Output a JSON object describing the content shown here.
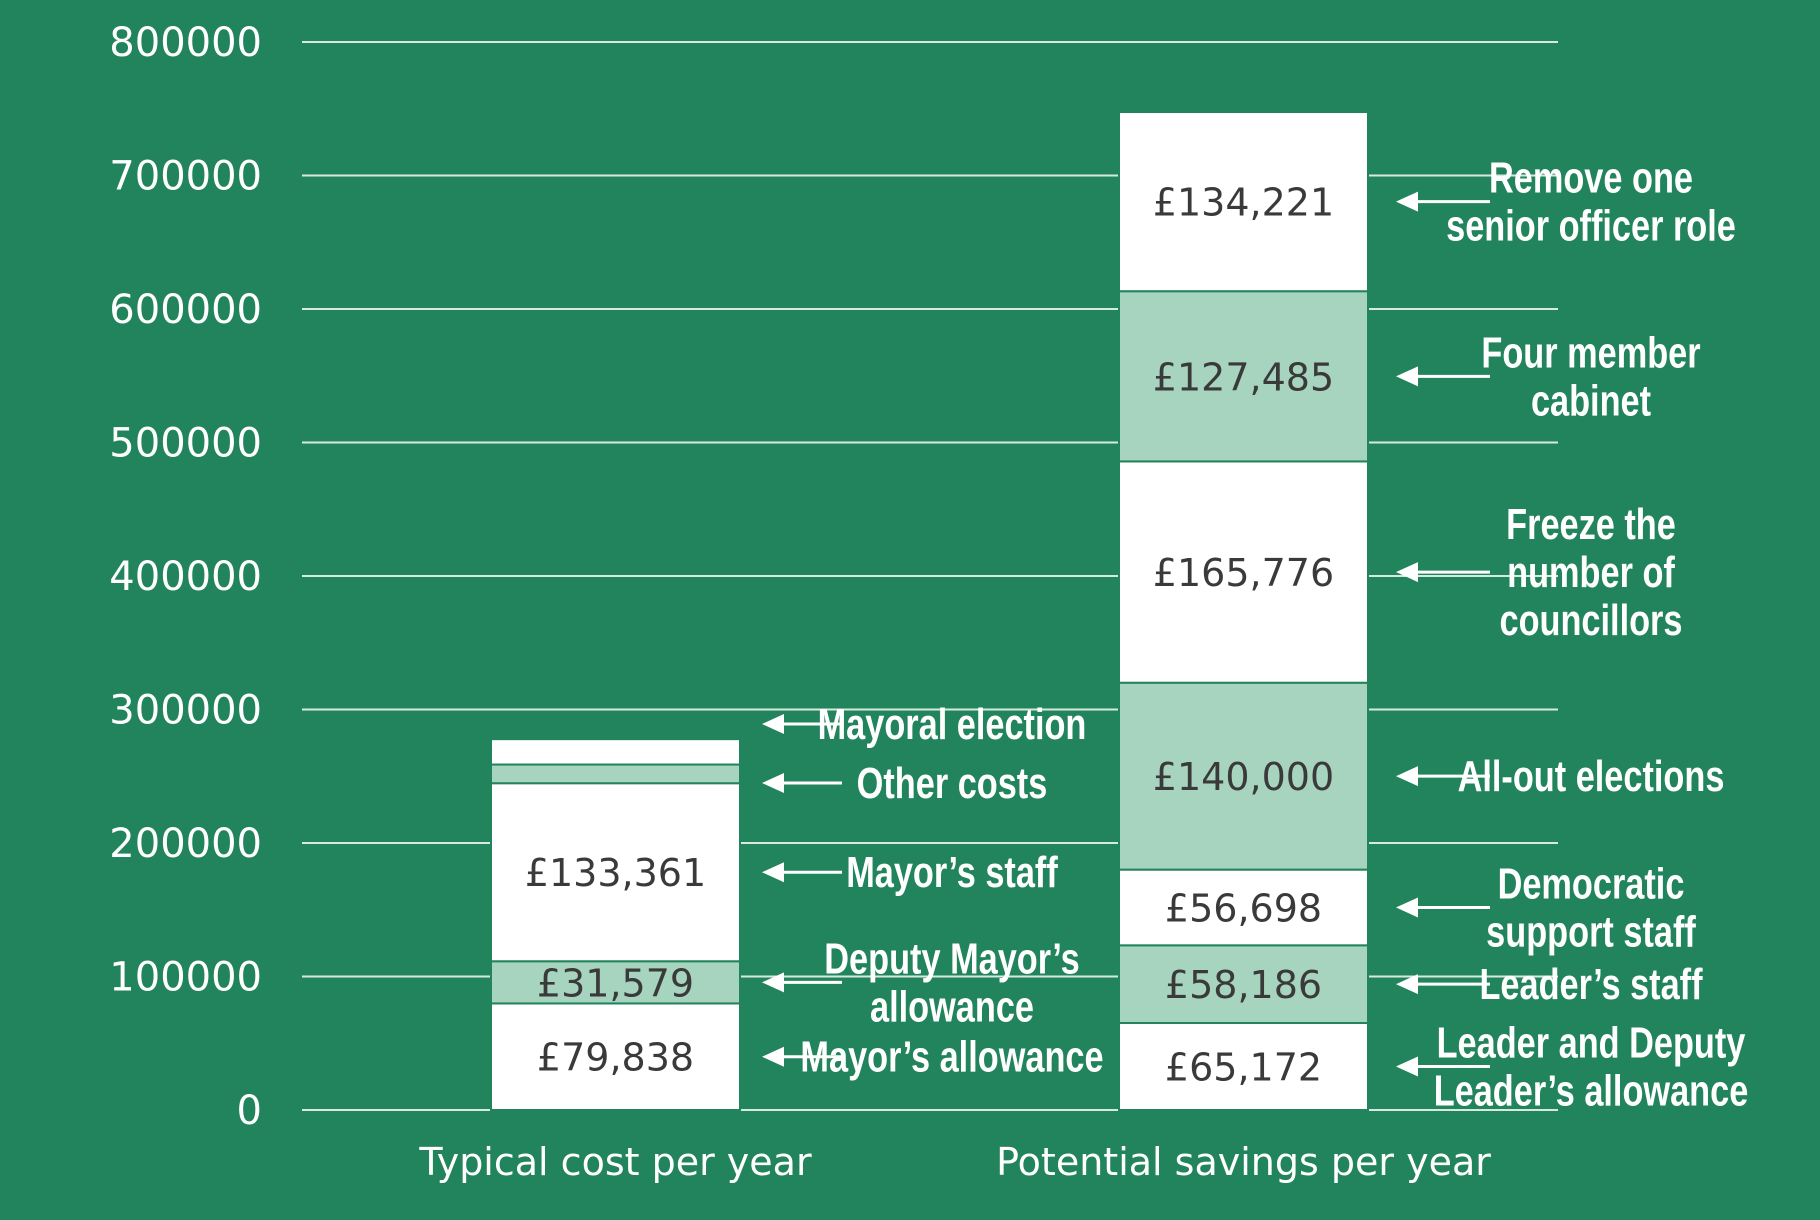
{
  "colors": {
    "background": "#22845c",
    "white_segment": "#ffffff",
    "light_segment": "#a6d4bf",
    "segment_border": "#22845c",
    "gridline": "#d8eadf",
    "value_text": "#3a3a3a"
  },
  "chart_data": {
    "type": "bar",
    "stacked": true,
    "title": "",
    "xlabel": "",
    "ylabel": "",
    "ylim": [
      0,
      800000
    ],
    "yticks": [
      0,
      100000,
      200000,
      300000,
      400000,
      500000,
      600000,
      700000,
      800000
    ],
    "ytick_labels": [
      "0",
      "100000",
      "200000",
      "300000",
      "400000",
      "500000",
      "600000",
      "700000",
      "800000"
    ],
    "grid": true,
    "categories": [
      "Typical cost per year",
      "Potential savings per year"
    ],
    "bars": [
      {
        "category": "Typical cost per year",
        "segments": [
          {
            "name": "Mayor’s allowance",
            "value": 79838,
            "label": "£79,838",
            "color": "white"
          },
          {
            "name": "Deputy Mayor’s allowance",
            "value": 31579,
            "label": "£31,579",
            "color": "light"
          },
          {
            "name": "Mayor’s staff",
            "value": 133361,
            "label": "£133,361",
            "color": "white"
          },
          {
            "name": "Other costs",
            "value": 14000,
            "label": "",
            "color": "light"
          },
          {
            "name": "Mayoral election",
            "value": 19000,
            "label": "",
            "color": "white"
          }
        ]
      },
      {
        "category": "Potential savings per year",
        "segments": [
          {
            "name": "Leader and Deputy Leader’s allowance",
            "value": 65172,
            "label": "£65,172",
            "color": "white"
          },
          {
            "name": "Leader’s staff",
            "value": 58186,
            "label": "£58,186",
            "color": "light"
          },
          {
            "name": "Democratic support staff",
            "value": 56698,
            "label": "£56,698",
            "color": "white"
          },
          {
            "name": "All-out elections",
            "value": 140000,
            "label": "£140,000",
            "color": "light"
          },
          {
            "name": "Freeze the number of councillors",
            "value": 165776,
            "label": "£165,776",
            "color": "white"
          },
          {
            "name": "Four member cabinet",
            "value": 127485,
            "label": "£127,485",
            "color": "light"
          },
          {
            "name": "Remove one senior officer role",
            "value": 134221,
            "label": "£134,221",
            "color": "white"
          }
        ]
      }
    ],
    "annotations": [
      {
        "bar": 0,
        "segment": 4,
        "lines": [
          "Mayoral election"
        ]
      },
      {
        "bar": 0,
        "segment": 3,
        "lines": [
          "Other costs"
        ]
      },
      {
        "bar": 0,
        "segment": 2,
        "lines": [
          "Mayor’s staff"
        ]
      },
      {
        "bar": 0,
        "segment": 1,
        "lines": [
          "Deputy Mayor’s",
          "allowance"
        ]
      },
      {
        "bar": 0,
        "segment": 0,
        "lines": [
          "Mayor’s allowance"
        ]
      },
      {
        "bar": 1,
        "segment": 6,
        "lines": [
          "Remove one",
          "senior officer role"
        ]
      },
      {
        "bar": 1,
        "segment": 5,
        "lines": [
          "Four member",
          "cabinet"
        ]
      },
      {
        "bar": 1,
        "segment": 4,
        "lines": [
          "Freeze the",
          "number of",
          "councillors"
        ]
      },
      {
        "bar": 1,
        "segment": 3,
        "lines": [
          "All-out elections"
        ]
      },
      {
        "bar": 1,
        "segment": 2,
        "lines": [
          "Democratic",
          "support staff"
        ]
      },
      {
        "bar": 1,
        "segment": 1,
        "lines": [
          "Leader’s staff"
        ]
      },
      {
        "bar": 1,
        "segment": 0,
        "lines": [
          "Leader and Deputy",
          "Leader’s allowance"
        ]
      }
    ]
  }
}
